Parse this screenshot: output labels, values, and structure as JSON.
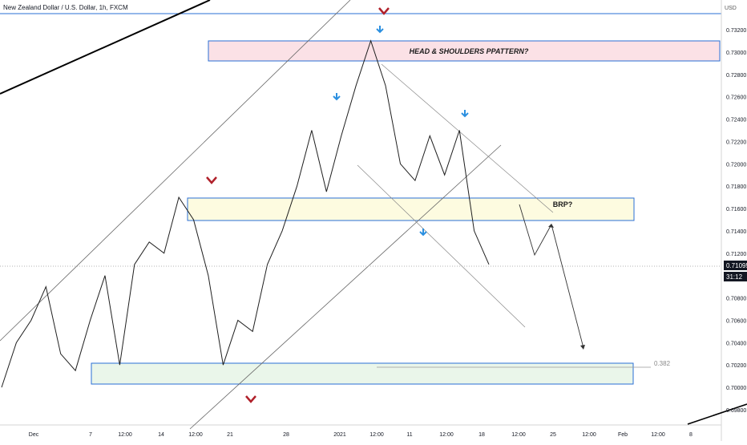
{
  "header": {
    "symbol_title": "New Zealand Dollar / U.S. Dollar, 1h, FXCM",
    "currency_menu": "USD"
  },
  "price_scale": {
    "ticks": [
      "0.73200",
      "0.73000",
      "0.72800",
      "0.72600",
      "0.72400",
      "0.72200",
      "0.72000",
      "0.71800",
      "0.71600",
      "0.71400",
      "0.71200",
      "0.70800",
      "0.70600",
      "0.70400",
      "0.70200",
      "0.70000",
      "0.69800"
    ],
    "last_price": "0.71095",
    "countdown": "31:12"
  },
  "time_scale": {
    "ticks": [
      "Dec",
      "7",
      "12:00",
      "14",
      "12:00",
      "21",
      "28",
      "2021",
      "12:00",
      "11",
      "12:00",
      "18",
      "12:00",
      "25",
      "12:00",
      "Feb",
      "12:00",
      "8"
    ]
  },
  "annotations": {
    "pattern_label": "HEAD & SHOULDERS PPATTERN?",
    "retest_label": "BRP?",
    "fib_level": "0.382"
  },
  "colors": {
    "price_line": "#1f1f1f",
    "zone_border": "#2a6fd6",
    "top_zone_fill": "#fbe1e6",
    "mid_zone_fill": "#fdfbe0",
    "bottom_zone_fill": "#eaf6ea",
    "arrow_down_red": "#b0202a",
    "arrow_down_blue": "#2b8fe0",
    "axis_text": "#131722"
  },
  "chart_data": {
    "type": "line",
    "title": "New Zealand Dollar / U.S. Dollar, 1h, FXCM",
    "xlabel": "",
    "ylabel": "",
    "ylim": [
      0.6978,
      0.734
    ],
    "x": [
      "Dec 1",
      "Dec 2",
      "Dec 3",
      "Dec 4",
      "Dec 7",
      "Dec 8",
      "Dec 9",
      "Dec 10",
      "Dec 11",
      "Dec 14",
      "Dec 15",
      "Dec 16",
      "Dec 17",
      "Dec 18",
      "Dec 21",
      "Dec 22",
      "Dec 23",
      "Dec 24",
      "Dec 28",
      "Dec 29",
      "Dec 30",
      "Dec 31",
      "Jan 4",
      "Jan 5",
      "Jan 6",
      "Jan 7",
      "Jan 8",
      "Jan 11",
      "Jan 12",
      "Jan 13",
      "Jan 14",
      "Jan 15",
      "Jan 18",
      "Jan 19"
    ],
    "series": [
      {
        "values": [
          0.7,
          0.704,
          0.706,
          0.709,
          0.703,
          0.7015,
          0.706,
          0.71,
          0.702,
          0.711,
          0.713,
          0.712,
          0.717,
          0.715,
          0.71,
          0.702,
          0.706,
          0.705,
          0.711,
          0.714,
          0.718,
          0.723,
          0.7175,
          0.7225,
          0.727,
          0.731,
          0.727,
          0.72,
          0.7185,
          0.7225,
          0.719,
          0.723,
          0.714,
          0.711
        ]
      }
    ]
  }
}
